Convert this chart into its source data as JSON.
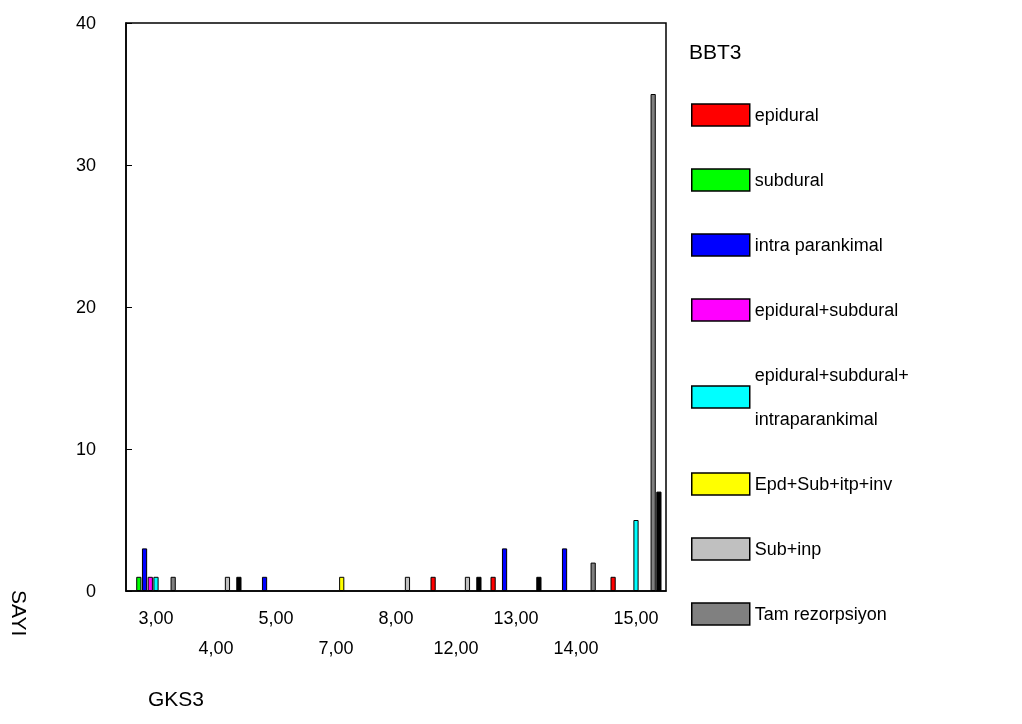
{
  "chart_data": {
    "type": "bar",
    "xlabel": "GKS3",
    "ylabel": "SAYI",
    "legend_title": "BBT3",
    "categories": [
      "3,00",
      "4,00",
      "5,00",
      "7,00",
      "8,00",
      "12,00",
      "13,00",
      "14,00",
      "15,00"
    ],
    "series": [
      {
        "name": "epidural",
        "color": "#ff0000",
        "values": [
          0,
          0,
          0,
          0,
          0,
          1,
          1,
          0,
          1
        ]
      },
      {
        "name": "subdural",
        "color": "#00ff00",
        "values": [
          1,
          0,
          0,
          0,
          0,
          0,
          0,
          0,
          0
        ]
      },
      {
        "name": "intra parankimal",
        "color": "#0000ff",
        "values": [
          3,
          0,
          1,
          0,
          0,
          0,
          3,
          3,
          0
        ]
      },
      {
        "name": "epidural+subdural",
        "color": "#ff00ff",
        "values": [
          1,
          0,
          0,
          0,
          0,
          0,
          0,
          0,
          0
        ]
      },
      {
        "name": "epidural+subdural+intraparankimal",
        "color": "#00ffff",
        "values": [
          1,
          0,
          0,
          0,
          0,
          0,
          0,
          0,
          5
        ]
      },
      {
        "name": "Epd+Sub+itp+inv",
        "color": "#ffff00",
        "values": [
          0,
          0,
          0,
          1,
          0,
          0,
          0,
          0,
          0
        ]
      },
      {
        "name": "Sub+inp",
        "color": "#c0c0c0",
        "values": [
          0,
          1,
          0,
          0,
          1,
          1,
          0,
          0,
          0
        ]
      },
      {
        "name": "Tam rezorpsiyon",
        "color": "#808080",
        "values": [
          1,
          0,
          0,
          0,
          0,
          0,
          0,
          2,
          35
        ]
      },
      {
        "color": "#000000",
        "values": [
          0,
          1,
          0,
          0,
          0,
          1,
          1,
          0,
          7
        ]
      }
    ],
    "ylim": [
      0,
      40
    ],
    "yticks": [
      0,
      10,
      20,
      30,
      40
    ],
    "grid": false,
    "legend": "right"
  }
}
